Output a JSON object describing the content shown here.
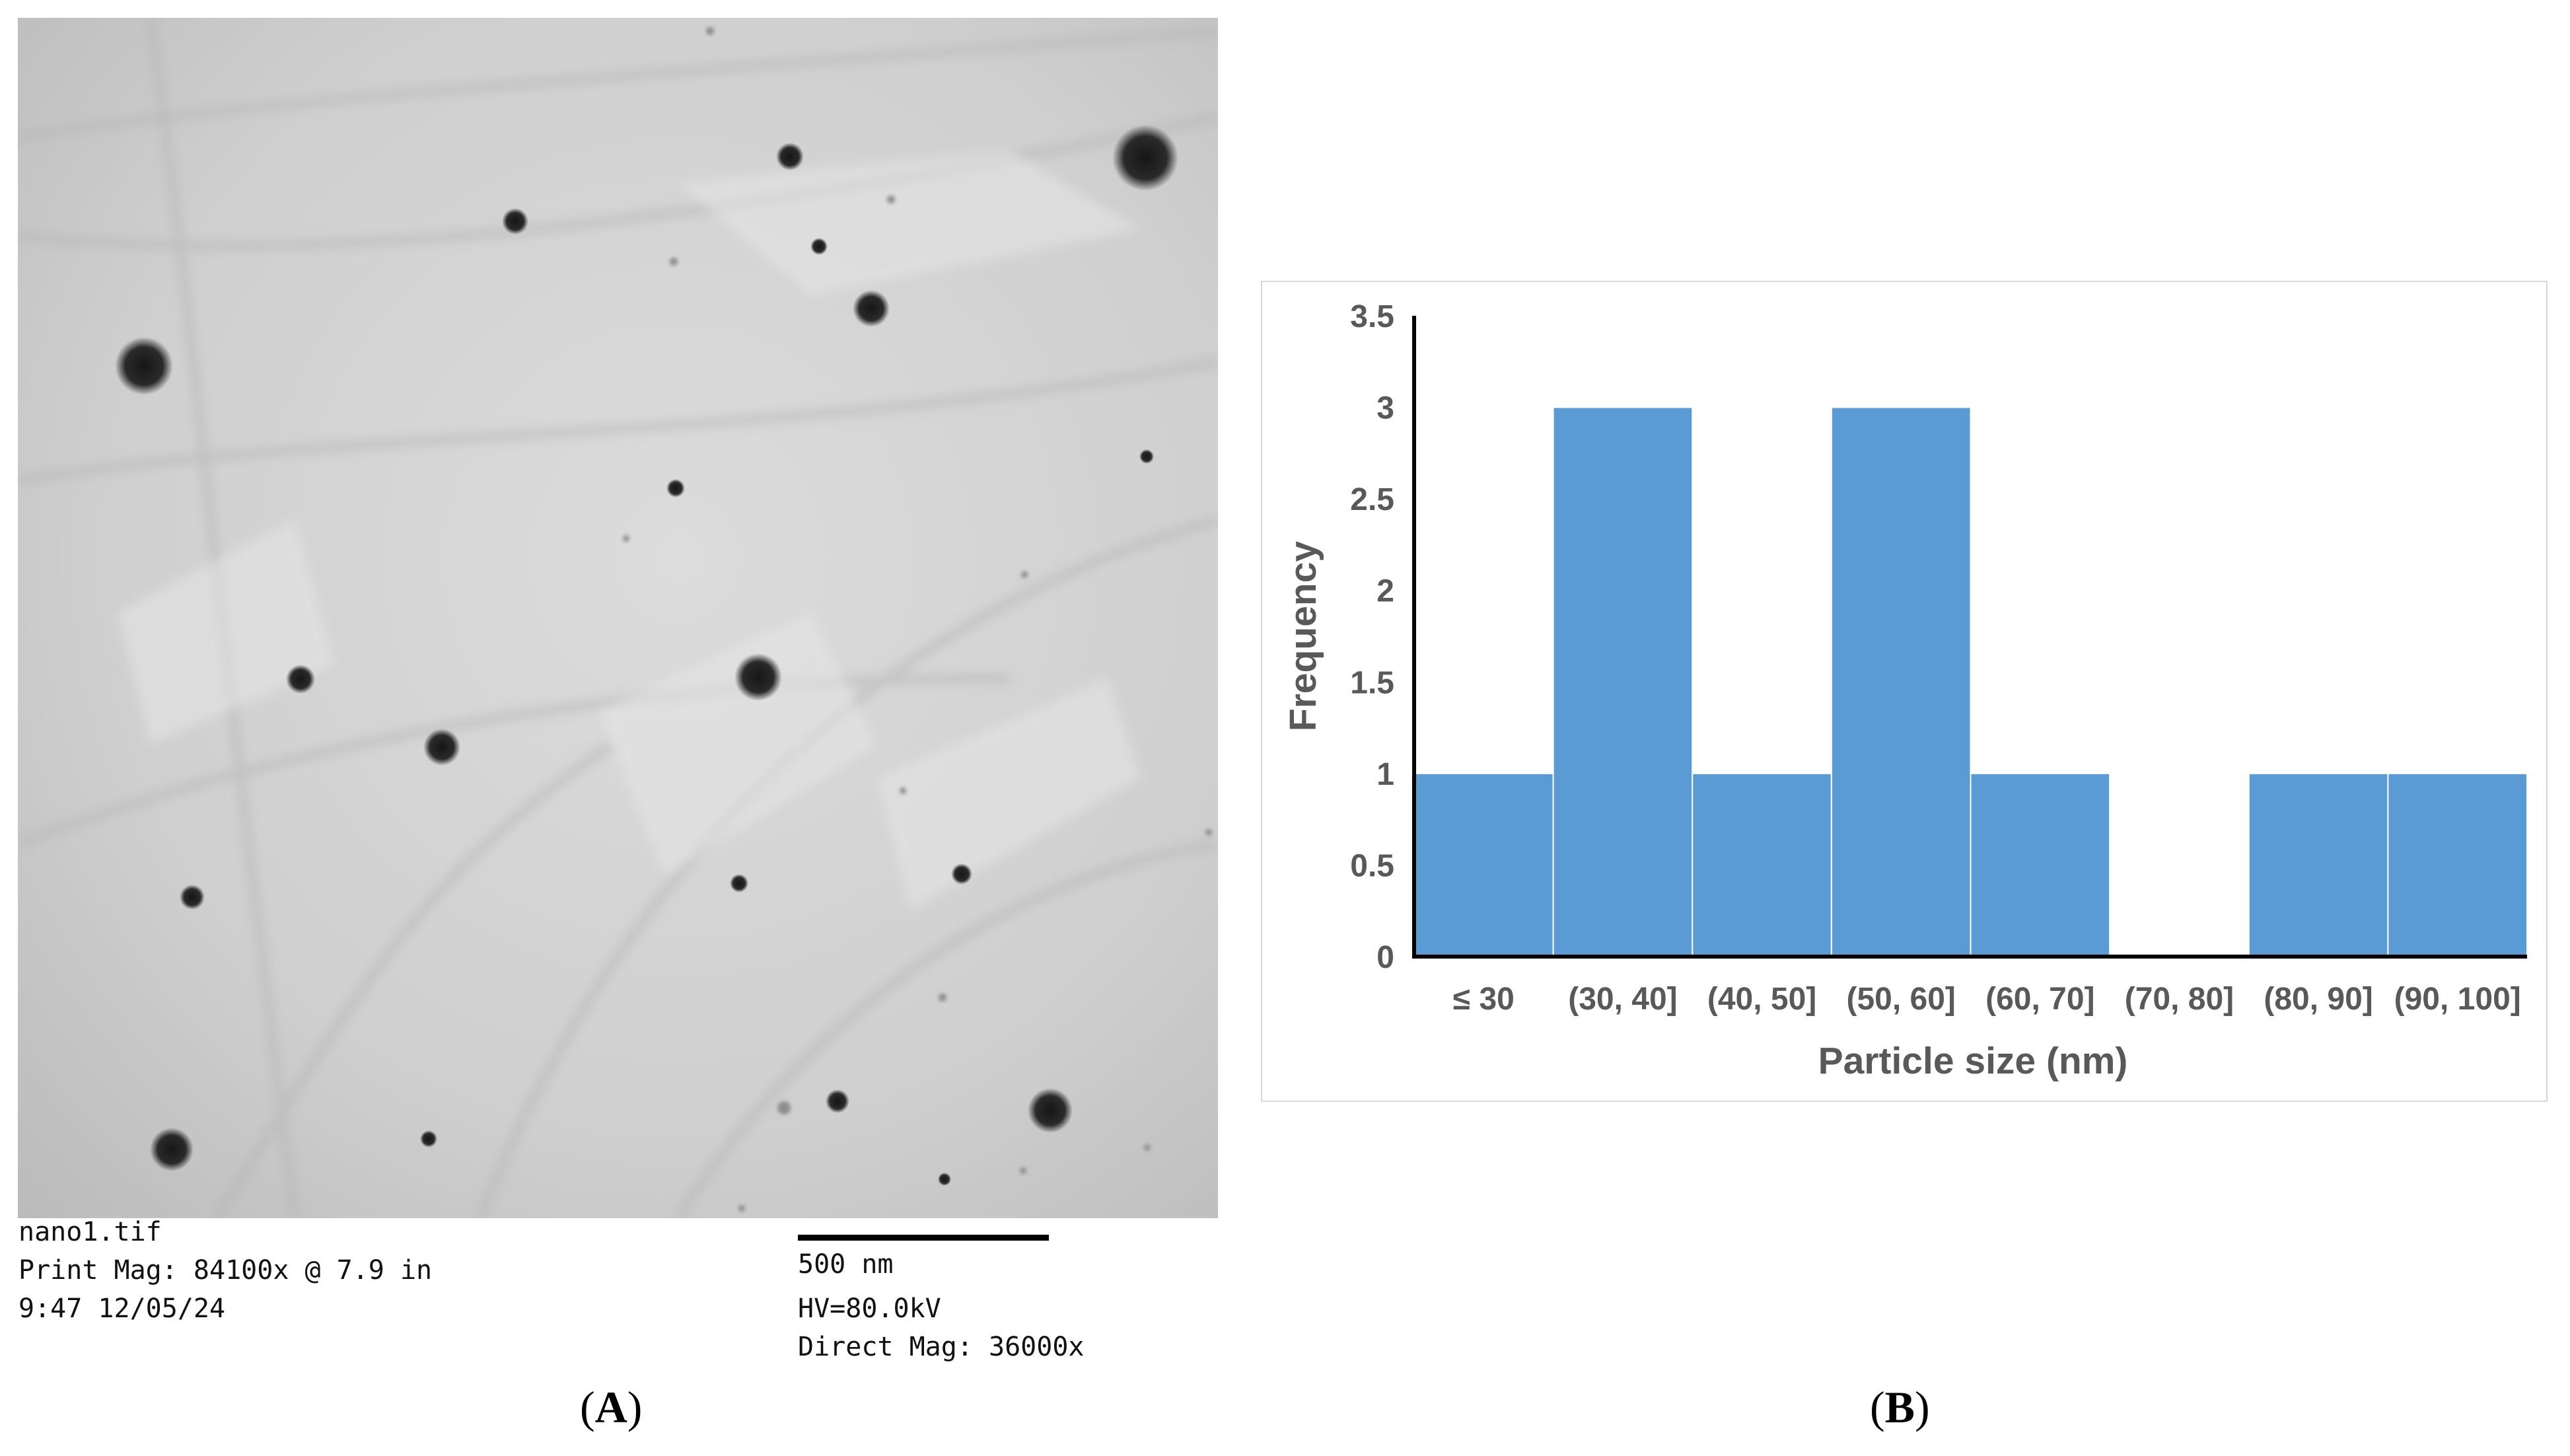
{
  "micrograph": {
    "panel_label": "A",
    "filename": "nano1.tif",
    "print_mag": "Print Mag: 84100x @ 7.9 in",
    "datetime": "9:47 12/05/24",
    "scale_bar_label": "500 nm",
    "hv": "HV=80.0kV",
    "direct_mag": "Direct Mag: 36000x"
  },
  "histogram": {
    "panel_label": "B"
  },
  "chart_data": {
    "type": "bar",
    "categories": [
      "≤ 30",
      "(30, 40]",
      "(40, 50]",
      "(50, 60]",
      "(60, 70]",
      "(70, 80]",
      "(80, 90]",
      "(90, 100]"
    ],
    "values": [
      1,
      3,
      1,
      3,
      1,
      0,
      1,
      1
    ],
    "xlabel": "Particle size (nm)",
    "ylabel": "Frequency",
    "ylim": [
      0,
      3.5
    ],
    "yticks": [
      "0",
      "0.5",
      "1",
      "1.5",
      "2",
      "2.5",
      "3",
      "3.5"
    ],
    "grid": false,
    "legend": "none",
    "bar_color": "#5b9bd5",
    "axis_color": "#000000"
  }
}
